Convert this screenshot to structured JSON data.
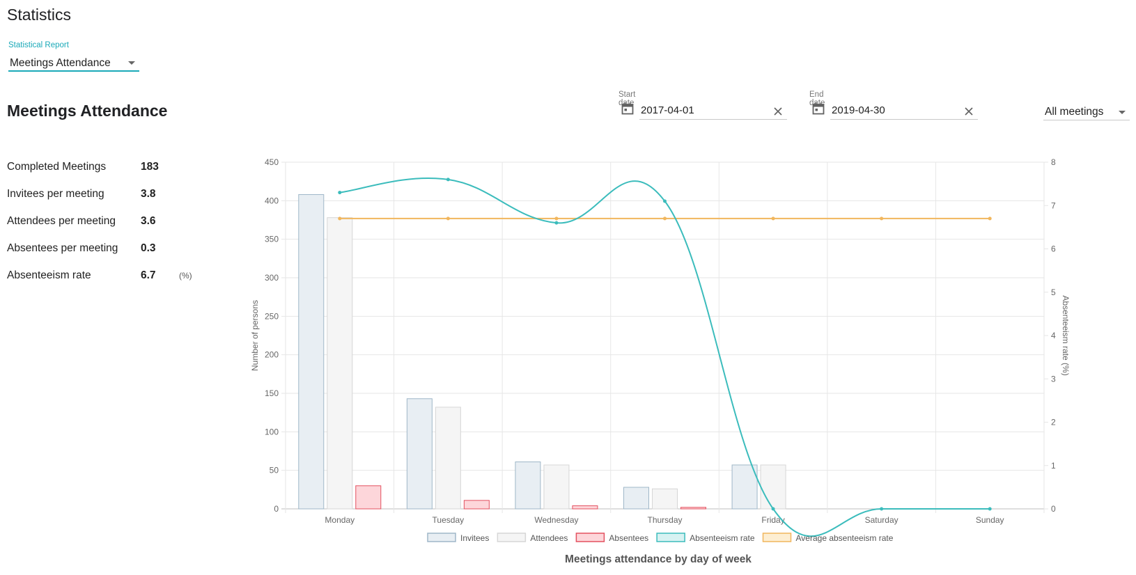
{
  "header": {
    "title": "Statistics"
  },
  "report_selector": {
    "label": "Statistical Report",
    "value": "Meetings Attendance"
  },
  "section": {
    "title": "Meetings Attendance"
  },
  "filters": {
    "start": {
      "label": "Start date",
      "value": "2017-04-01"
    },
    "end": {
      "label": "End date",
      "value": "2019-04-30"
    },
    "meetings": {
      "value": "All meetings"
    }
  },
  "stats": [
    {
      "label": "Completed Meetings",
      "value": "183",
      "unit": ""
    },
    {
      "label": "Invitees per meeting",
      "value": "3.8",
      "unit": ""
    },
    {
      "label": "Attendees per meeting",
      "value": "3.6",
      "unit": ""
    },
    {
      "label": "Absentees per meeting",
      "value": "0.3",
      "unit": ""
    },
    {
      "label": "Absenteeism rate",
      "value": "6.7",
      "unit": "(%)"
    }
  ],
  "colors": {
    "accent": "#1aa9b8"
  },
  "icons": {
    "date": "calendar-icon",
    "clear": "close-icon",
    "dropdown": "chevron-down-icon"
  },
  "chart_data": {
    "type": "bar",
    "title": "Meetings attendance by day of week",
    "categories": [
      "Monday",
      "Tuesday",
      "Wednesday",
      "Thursday",
      "Friday",
      "Saturday",
      "Sunday"
    ],
    "ylabel": "Number of persons",
    "ylim": [
      0,
      450
    ],
    "yticks": [
      0,
      50,
      100,
      150,
      200,
      250,
      300,
      350,
      400,
      450
    ],
    "y2label": "Absenteeism rate (%)",
    "y2lim": [
      0,
      8
    ],
    "y2ticks": [
      0,
      1,
      2,
      3,
      4,
      5,
      6,
      7,
      8
    ],
    "grid": true,
    "legend_position": "bottom",
    "series": [
      {
        "name": "Invitees",
        "type": "bar",
        "axis": "left",
        "fill": "#e8eef3",
        "stroke": "#9fb7c8",
        "values": [
          408,
          143,
          61,
          28,
          57,
          0,
          0
        ]
      },
      {
        "name": "Attendees",
        "type": "bar",
        "axis": "left",
        "fill": "#f5f5f5",
        "stroke": "#d6d6d6",
        "values": [
          378,
          132,
          57,
          26,
          57,
          0,
          0
        ]
      },
      {
        "name": "Absentees",
        "type": "bar",
        "axis": "left",
        "fill": "#fdd6da",
        "stroke": "#e3505f",
        "values": [
          30,
          11,
          4,
          2,
          0,
          0,
          0
        ]
      },
      {
        "name": "Absenteeism rate",
        "type": "line",
        "axis": "right",
        "fill": "#d7f2f2",
        "stroke": "#3bbcbc",
        "values": [
          7.3,
          7.6,
          6.6,
          7.1,
          0,
          0,
          0
        ]
      },
      {
        "name": "Average absenteeism rate",
        "type": "line",
        "axis": "right",
        "fill": "#fdeed2",
        "stroke": "#f1b65d",
        "values": [
          6.7,
          6.7,
          6.7,
          6.7,
          6.7,
          6.7,
          6.7
        ]
      }
    ]
  }
}
